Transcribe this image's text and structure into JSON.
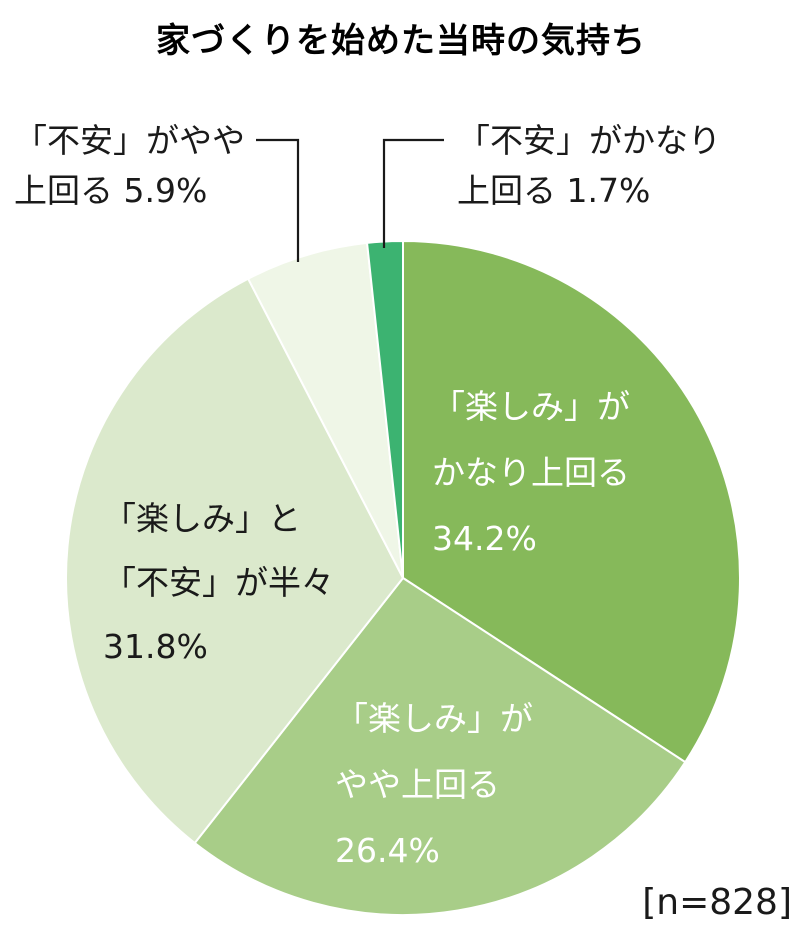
{
  "chart_data": {
    "type": "pie",
    "title": "家づくりを始めた当時の気持ち",
    "note": "[n=828]",
    "slices": [
      {
        "lines": [
          "「楽しみ」が",
          "かなり上回る"
        ],
        "value": 34.2,
        "value_label": "34.2%",
        "color": "#86b95a",
        "text": "light"
      },
      {
        "lines": [
          "「楽しみ」が",
          "やや上回る"
        ],
        "value": 26.4,
        "value_label": "26.4%",
        "color": "#a8cd88",
        "text": "light"
      },
      {
        "lines": [
          "「楽しみ」と",
          "「不安」が半々"
        ],
        "value": 31.8,
        "value_label": "31.8%",
        "color": "#dbe9cc",
        "text": "dark"
      },
      {
        "lines": [
          "「不安」がやや",
          "上回る"
        ],
        "value": 5.9,
        "value_label": "5.9%",
        "color": "#eff6e7",
        "text": "dark"
      },
      {
        "lines": [
          "「不安」がかなり",
          "上回る"
        ],
        "value": 1.7,
        "value_label": "1.7%",
        "color": "#3cb371",
        "text": "dark"
      }
    ]
  }
}
